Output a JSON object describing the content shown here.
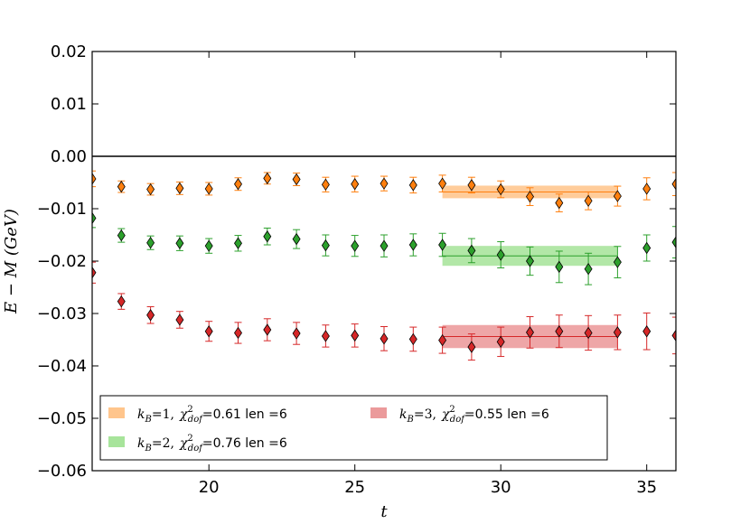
{
  "chart_data": {
    "type": "scatter",
    "xlabel": "t",
    "ylabel": "E − M (GeV)",
    "xlim": [
      16,
      36
    ],
    "ylim": [
      -0.06,
      0.02
    ],
    "xticks": [
      20,
      25,
      30,
      35
    ],
    "yticks": [
      -0.06,
      -0.05,
      -0.04,
      -0.03,
      -0.02,
      -0.01,
      0.0,
      0.01,
      0.02
    ],
    "ytick_labels": [
      "−0.06",
      "−0.05",
      "−0.04",
      "−0.03",
      "−0.02",
      "−0.01",
      "0.00",
      "0.01",
      "0.02"
    ],
    "xtick_labels": [
      "20",
      "25",
      "30",
      "35"
    ],
    "horizontal_line": 0.0,
    "series": [
      {
        "name": "k_B=1",
        "color": "#ff7f0e",
        "band_color": "#ffbb78",
        "x": [
          16,
          17,
          18,
          19,
          20,
          21,
          22,
          23,
          24,
          25,
          26,
          27,
          28,
          29,
          30,
          31,
          32,
          33,
          34,
          35,
          36
        ],
        "y": [
          -0.0043,
          -0.0058,
          -0.0063,
          -0.0061,
          -0.0062,
          -0.0053,
          -0.0042,
          -0.0044,
          -0.0054,
          -0.0053,
          -0.0052,
          -0.0055,
          -0.0052,
          -0.0055,
          -0.0063,
          -0.0077,
          -0.0089,
          -0.0085,
          -0.0076,
          -0.0062,
          -0.0053
        ],
        "err": [
          0.0015,
          0.0011,
          0.0011,
          0.0012,
          0.0012,
          0.0012,
          0.0011,
          0.0012,
          0.0014,
          0.0015,
          0.0014,
          0.0015,
          0.0016,
          0.0015,
          0.0016,
          0.0017,
          0.0017,
          0.0017,
          0.0019,
          0.0021,
          0.0022
        ],
        "fit": {
          "range": [
            28,
            34
          ],
          "value": -0.0068,
          "err": 0.0012
        },
        "legend": {
          "prefix": "k",
          "sub": "B",
          "eq": "=1,",
          "chi": "χ",
          "chi_sup": "2",
          "chi_sub": "dof",
          "stat": "=0.61 len =6"
        }
      },
      {
        "name": "k_B=2",
        "color": "#2ca02c",
        "band_color": "#98df8a",
        "x": [
          16,
          17,
          18,
          19,
          20,
          21,
          22,
          23,
          24,
          25,
          26,
          27,
          28,
          29,
          30,
          31,
          32,
          33,
          34,
          35,
          36
        ],
        "y": [
          -0.0118,
          -0.0151,
          -0.0165,
          -0.0166,
          -0.0171,
          -0.0166,
          -0.0153,
          -0.0158,
          -0.017,
          -0.0171,
          -0.0171,
          -0.0169,
          -0.0169,
          -0.018,
          -0.0188,
          -0.02,
          -0.0211,
          -0.0215,
          -0.0202,
          -0.0175,
          -0.0164
        ],
        "err": [
          0.0018,
          0.0013,
          0.0013,
          0.0014,
          0.0014,
          0.0015,
          0.0016,
          0.0018,
          0.002,
          0.002,
          0.0021,
          0.0021,
          0.0022,
          0.0023,
          0.0025,
          0.0027,
          0.003,
          0.003,
          0.003,
          0.0025,
          0.003
        ],
        "fit": {
          "range": [
            28,
            34
          ],
          "value": -0.019,
          "err": 0.0019
        },
        "legend": {
          "prefix": "k",
          "sub": "B",
          "eq": "=2,",
          "chi": "χ",
          "chi_sup": "2",
          "chi_sub": "dof",
          "stat": "=0.76 len =6"
        }
      },
      {
        "name": "k_B=3",
        "color": "#d62728",
        "band_color": "#e8888a",
        "x": [
          16,
          17,
          18,
          19,
          20,
          21,
          22,
          23,
          24,
          25,
          26,
          27,
          28,
          29,
          30,
          31,
          32,
          33,
          34,
          35,
          36
        ],
        "y": [
          -0.0222,
          -0.0277,
          -0.0303,
          -0.0312,
          -0.0334,
          -0.0337,
          -0.0331,
          -0.0338,
          -0.0343,
          -0.0342,
          -0.0348,
          -0.0349,
          -0.0351,
          -0.0364,
          -0.0354,
          -0.0336,
          -0.0334,
          -0.0337,
          -0.0336,
          -0.0334,
          -0.0342
        ],
        "err": [
          0.002,
          0.0015,
          0.0016,
          0.0016,
          0.0019,
          0.002,
          0.0021,
          0.0021,
          0.0021,
          0.0022,
          0.0023,
          0.0023,
          0.0025,
          0.0025,
          0.0028,
          0.003,
          0.0031,
          0.0033,
          0.0033,
          0.0035,
          0.0035
        ],
        "fit": {
          "range": [
            28,
            34
          ],
          "value": -0.0344,
          "err": 0.0022
        },
        "legend": {
          "prefix": "k",
          "sub": "B",
          "eq": "=3,",
          "chi": "χ",
          "chi_sup": "2",
          "chi_sub": "dof",
          "stat": "=0.55 len =6"
        }
      }
    ],
    "legend_position": "lower-left"
  }
}
